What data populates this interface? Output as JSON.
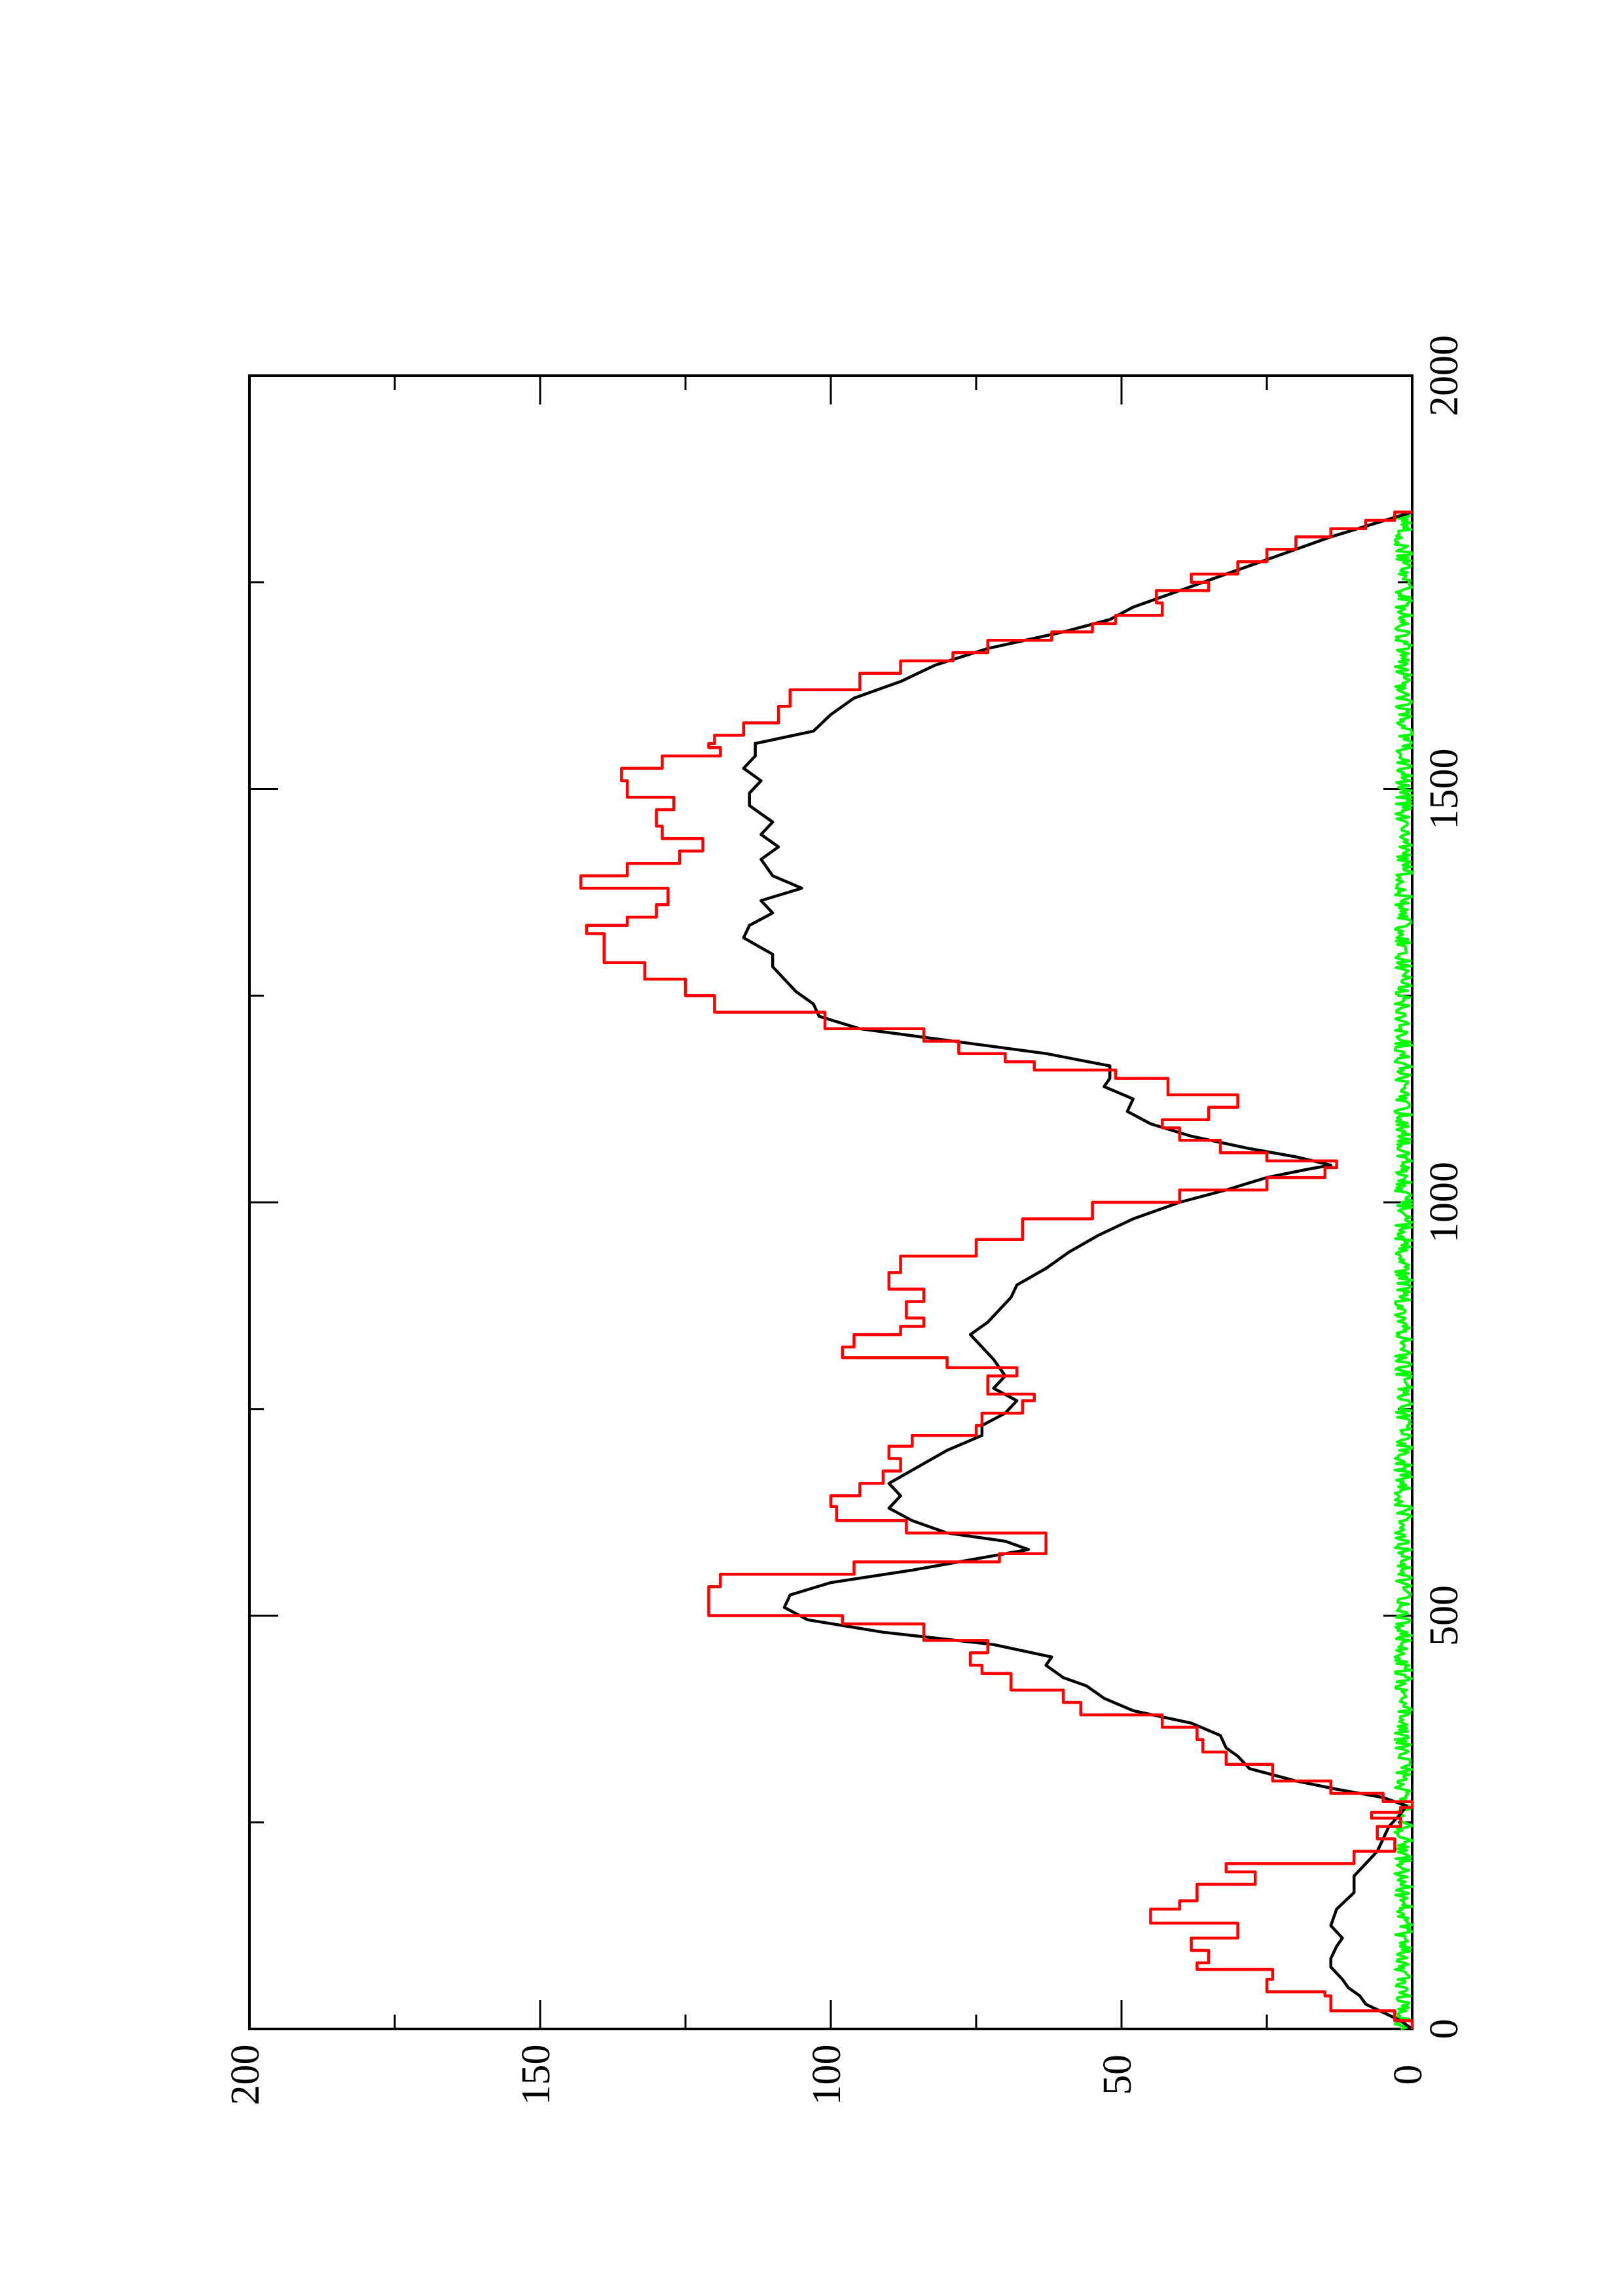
{
  "chart_data": {
    "type": "line",
    "orientation": "rotated-90-counterclockwise",
    "title": "",
    "xlabel": "",
    "ylabel": "",
    "xlim": [
      0,
      2000
    ],
    "ylim": [
      0,
      200
    ],
    "x_ticks": [
      {
        "value": 0,
        "label": "0"
      },
      {
        "value": 500,
        "label": "500"
      },
      {
        "value": 1000,
        "label": "1000"
      },
      {
        "value": 1500,
        "label": "1500"
      },
      {
        "value": 2000,
        "label": "2000"
      }
    ],
    "x_minor_ticks": [
      250,
      750,
      1250,
      1750
    ],
    "y_ticks": [
      {
        "value": 0,
        "label": "0"
      },
      {
        "value": 50,
        "label": "50"
      },
      {
        "value": 100,
        "label": "100"
      },
      {
        "value": 150,
        "label": "150"
      },
      {
        "value": 200,
        "label": "200"
      }
    ],
    "y_minor_ticks": [
      25,
      75,
      125,
      175
    ],
    "grid": false,
    "legend": "none",
    "series": [
      {
        "color": "#ff0000",
        "style": "step",
        "points": [
          [
            0,
            0
          ],
          [
            10,
            3
          ],
          [
            22,
            14
          ],
          [
            40,
            15
          ],
          [
            45,
            25
          ],
          [
            60,
            24
          ],
          [
            72,
            37
          ],
          [
            80,
            35
          ],
          [
            95,
            38
          ],
          [
            110,
            30
          ],
          [
            128,
            45
          ],
          [
            145,
            40
          ],
          [
            155,
            37
          ],
          [
            175,
            27
          ],
          [
            190,
            32
          ],
          [
            200,
            10
          ],
          [
            215,
            3
          ],
          [
            230,
            6
          ],
          [
            245,
            2
          ],
          [
            255,
            7
          ],
          [
            262,
            2
          ],
          [
            268,
            0
          ],
          [
            275,
            5
          ],
          [
            285,
            14
          ],
          [
            300,
            24
          ],
          [
            320,
            32
          ],
          [
            335,
            36
          ],
          [
            350,
            37
          ],
          [
            365,
            43
          ],
          [
            380,
            57
          ],
          [
            395,
            60
          ],
          [
            410,
            69
          ],
          [
            430,
            74
          ],
          [
            440,
            76
          ],
          [
            455,
            73
          ],
          [
            470,
            84
          ],
          [
            490,
            98
          ],
          [
            500,
            121
          ],
          [
            520,
            121
          ],
          [
            535,
            119
          ],
          [
            550,
            96
          ],
          [
            565,
            71
          ],
          [
            575,
            63
          ],
          [
            600,
            87
          ],
          [
            615,
            99
          ],
          [
            632,
            100
          ],
          [
            645,
            95
          ],
          [
            660,
            91
          ],
          [
            675,
            88
          ],
          [
            690,
            90
          ],
          [
            705,
            86
          ],
          [
            718,
            75
          ],
          [
            730,
            74
          ],
          [
            745,
            67
          ],
          [
            760,
            65
          ],
          [
            768,
            73
          ],
          [
            790,
            68
          ],
          [
            800,
            80
          ],
          [
            812,
            98
          ],
          [
            825,
            96
          ],
          [
            840,
            88
          ],
          [
            850,
            84
          ],
          [
            860,
            87
          ],
          [
            880,
            84
          ],
          [
            895,
            90
          ],
          [
            915,
            88
          ],
          [
            935,
            75
          ],
          [
            955,
            67
          ],
          [
            980,
            55
          ],
          [
            1000,
            40
          ],
          [
            1015,
            25
          ],
          [
            1030,
            15
          ],
          [
            1042,
            13
          ],
          [
            1050,
            25
          ],
          [
            1060,
            33
          ],
          [
            1075,
            40
          ],
          [
            1090,
            43
          ],
          [
            1100,
            35
          ],
          [
            1115,
            30
          ],
          [
            1130,
            42
          ],
          [
            1150,
            51
          ],
          [
            1160,
            65
          ],
          [
            1170,
            70
          ],
          [
            1180,
            78
          ],
          [
            1195,
            84
          ],
          [
            1210,
            101
          ],
          [
            1230,
            120
          ],
          [
            1250,
            125
          ],
          [
            1270,
            132
          ],
          [
            1290,
            139
          ],
          [
            1305,
            139
          ],
          [
            1325,
            142
          ],
          [
            1335,
            135
          ],
          [
            1345,
            130
          ],
          [
            1360,
            128
          ],
          [
            1380,
            143
          ],
          [
            1395,
            135
          ],
          [
            1410,
            126
          ],
          [
            1425,
            122
          ],
          [
            1440,
            129
          ],
          [
            1455,
            130
          ],
          [
            1475,
            127
          ],
          [
            1490,
            135
          ],
          [
            1510,
            136
          ],
          [
            1525,
            129
          ],
          [
            1540,
            119
          ],
          [
            1550,
            121
          ],
          [
            1555,
            120
          ],
          [
            1565,
            115
          ],
          [
            1580,
            109
          ],
          [
            1600,
            107
          ],
          [
            1620,
            95
          ],
          [
            1640,
            88
          ],
          [
            1655,
            79
          ],
          [
            1665,
            73
          ],
          [
            1680,
            62
          ],
          [
            1690,
            55
          ],
          [
            1700,
            51
          ],
          [
            1710,
            43
          ],
          [
            1725,
            44
          ],
          [
            1740,
            35
          ],
          [
            1750,
            38
          ],
          [
            1760,
            30
          ],
          [
            1775,
            25
          ],
          [
            1790,
            20
          ],
          [
            1805,
            14
          ],
          [
            1815,
            8
          ],
          [
            1825,
            3
          ],
          [
            1835,
            0
          ]
        ]
      },
      {
        "color": "#000000",
        "style": "line",
        "points": [
          [
            0,
            0
          ],
          [
            10,
            2
          ],
          [
            20,
            5
          ],
          [
            30,
            8
          ],
          [
            40,
            9
          ],
          [
            50,
            11
          ],
          [
            60,
            12
          ],
          [
            75,
            14
          ],
          [
            85,
            14
          ],
          [
            100,
            13
          ],
          [
            110,
            12
          ],
          [
            125,
            14
          ],
          [
            145,
            13
          ],
          [
            165,
            10
          ],
          [
            185,
            10
          ],
          [
            200,
            8
          ],
          [
            215,
            6
          ],
          [
            230,
            5
          ],
          [
            245,
            4
          ],
          [
            260,
            2
          ],
          [
            270,
            1
          ],
          [
            280,
            5
          ],
          [
            290,
            13
          ],
          [
            300,
            20
          ],
          [
            315,
            28
          ],
          [
            330,
            30
          ],
          [
            340,
            32
          ],
          [
            355,
            33
          ],
          [
            370,
            38
          ],
          [
            385,
            48
          ],
          [
            400,
            53
          ],
          [
            415,
            56
          ],
          [
            425,
            60
          ],
          [
            440,
            63
          ],
          [
            450,
            62
          ],
          [
            465,
            72
          ],
          [
            480,
            91
          ],
          [
            495,
            104
          ],
          [
            510,
            108
          ],
          [
            525,
            107
          ],
          [
            540,
            100
          ],
          [
            555,
            86
          ],
          [
            570,
            74
          ],
          [
            580,
            66
          ],
          [
            590,
            70
          ],
          [
            600,
            80
          ],
          [
            615,
            86
          ],
          [
            630,
            90
          ],
          [
            645,
            88
          ],
          [
            660,
            90
          ],
          [
            680,
            85
          ],
          [
            700,
            80
          ],
          [
            718,
            74
          ],
          [
            730,
            74
          ],
          [
            745,
            70
          ],
          [
            760,
            68
          ],
          [
            775,
            72
          ],
          [
            790,
            70
          ],
          [
            810,
            72
          ],
          [
            825,
            74
          ],
          [
            840,
            76
          ],
          [
            855,
            73
          ],
          [
            870,
            71
          ],
          [
            885,
            69
          ],
          [
            900,
            68
          ],
          [
            920,
            63
          ],
          [
            940,
            59
          ],
          [
            960,
            54
          ],
          [
            980,
            48
          ],
          [
            1000,
            40
          ],
          [
            1015,
            32
          ],
          [
            1030,
            25
          ],
          [
            1040,
            18
          ],
          [
            1045,
            14
          ],
          [
            1055,
            20
          ],
          [
            1065,
            28
          ],
          [
            1080,
            38
          ],
          [
            1095,
            45
          ],
          [
            1110,
            49
          ],
          [
            1125,
            48
          ],
          [
            1140,
            53
          ],
          [
            1150,
            52
          ],
          [
            1165,
            52
          ],
          [
            1180,
            63
          ],
          [
            1195,
            79
          ],
          [
            1210,
            95
          ],
          [
            1225,
            102
          ],
          [
            1240,
            103
          ],
          [
            1255,
            106
          ],
          [
            1270,
            108
          ],
          [
            1285,
            110
          ],
          [
            1300,
            110
          ],
          [
            1320,
            115
          ],
          [
            1335,
            114
          ],
          [
            1350,
            110
          ],
          [
            1365,
            112
          ],
          [
            1380,
            105
          ],
          [
            1395,
            110
          ],
          [
            1415,
            112
          ],
          [
            1430,
            109
          ],
          [
            1445,
            112
          ],
          [
            1460,
            110
          ],
          [
            1480,
            114
          ],
          [
            1495,
            114
          ],
          [
            1510,
            112
          ],
          [
            1525,
            115
          ],
          [
            1540,
            113
          ],
          [
            1555,
            113
          ],
          [
            1570,
            103
          ],
          [
            1590,
            100
          ],
          [
            1610,
            96
          ],
          [
            1630,
            88
          ],
          [
            1650,
            82
          ],
          [
            1670,
            73
          ],
          [
            1690,
            60
          ],
          [
            1705,
            52
          ],
          [
            1720,
            48
          ],
          [
            1735,
            42
          ],
          [
            1750,
            36
          ],
          [
            1760,
            32
          ],
          [
            1775,
            26
          ],
          [
            1790,
            20
          ],
          [
            1805,
            14
          ],
          [
            1820,
            7
          ],
          [
            1835,
            0
          ]
        ]
      },
      {
        "color": "#00ff00",
        "style": "noise",
        "baseline": 0,
        "amplitude": [
          0,
          3
        ],
        "x_range": [
          0,
          1835
        ]
      }
    ]
  }
}
